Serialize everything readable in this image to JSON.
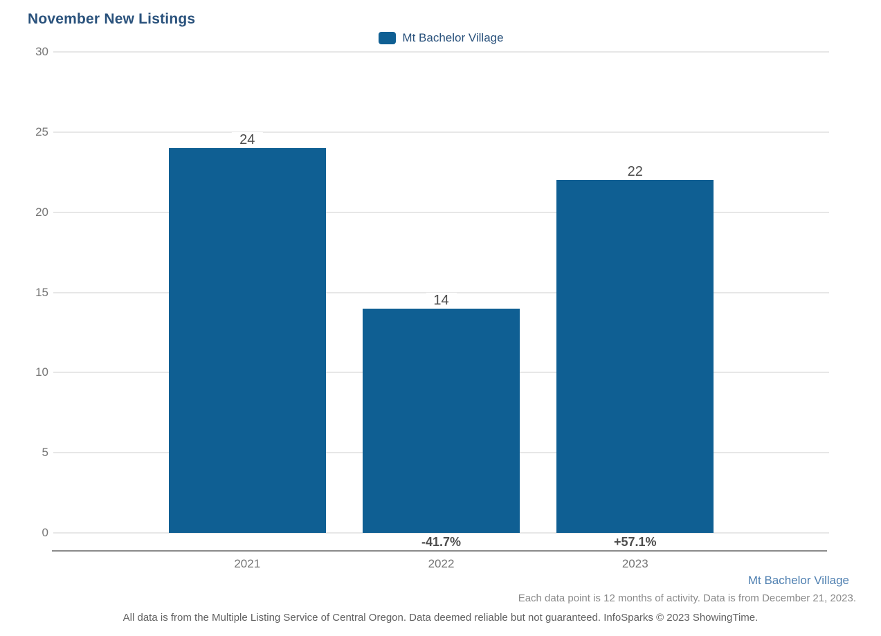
{
  "title": "November New Listings",
  "legend": {
    "label": "Mt Bachelor Village",
    "swatch_color": "#0f5f93"
  },
  "chart_data": {
    "type": "bar",
    "title": "November New Listings",
    "series_name": "Mt Bachelor Village",
    "categories": [
      "2021",
      "2022",
      "2023"
    ],
    "values": [
      24,
      14,
      22
    ],
    "value_labels": [
      "24",
      "14",
      "22"
    ],
    "change_labels": [
      "",
      "-41.7%",
      "+57.1%"
    ],
    "xlabel": "",
    "ylabel": "",
    "ylim": [
      0,
      30
    ],
    "yticks": [
      0,
      5,
      10,
      15,
      20,
      25,
      30
    ],
    "grid": true,
    "legend_position": "top-center",
    "bar_color": "#0f5f93"
  },
  "footer": {
    "series_link": "Mt Bachelor Village",
    "data_note": "Each data point is 12 months of activity. Data is from December 21, 2023.",
    "disclaimer": "All data is from the Multiple Listing Service of Central Oregon. Data deemed reliable but not guaranteed. InfoSparks © 2023 ShowingTime."
  },
  "colors": {
    "bar": "#0f5f93",
    "title_text": "#2a527c",
    "legend_text": "#2a527c",
    "link_text": "#4e7fb0",
    "axis_label": "#757575",
    "value_label": "#4d4d4d",
    "percent_label": "#4d4d4d",
    "gridline": "#e7e7e7",
    "axis_line": "#8a8a8a",
    "note_text": "#8a8a8a",
    "disclaimer_text": "#616161"
  }
}
